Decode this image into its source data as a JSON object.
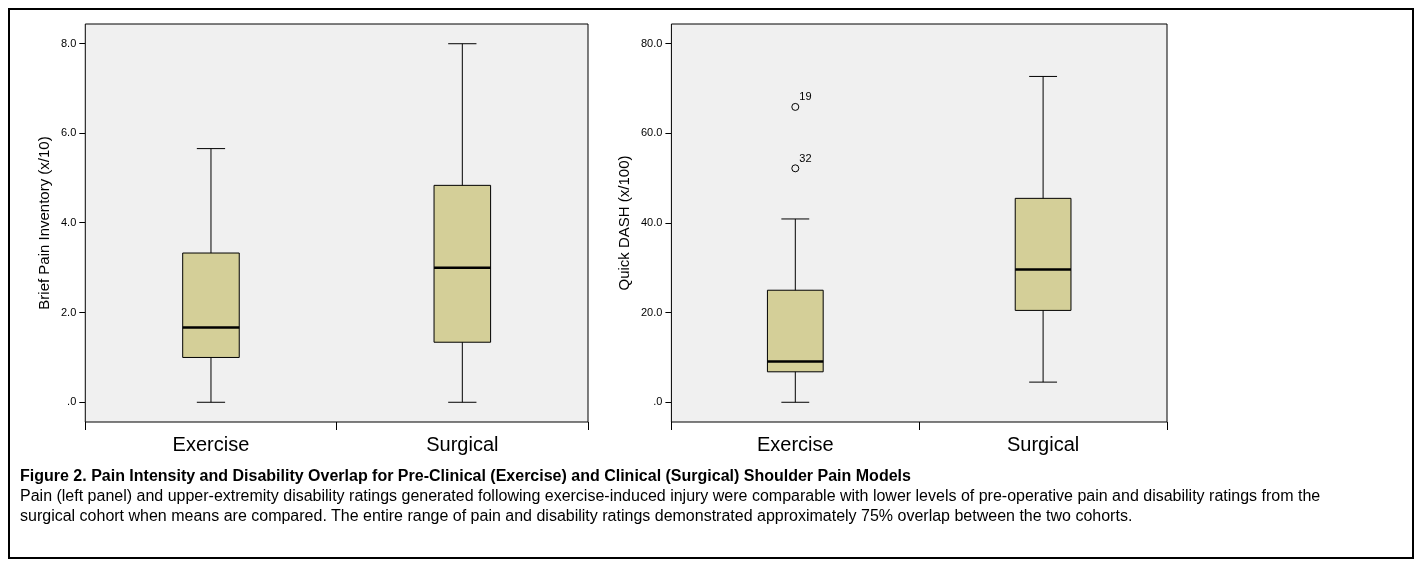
{
  "chart_data": [
    {
      "type": "box",
      "title": "Figure 2. Pain Intensity and Disability Overlap for Pre-Clinical (Exercise) and Clinical (Surgical) Shoulder Pain Models",
      "subtitle": "Pain (left panel) and upper-extremity disability ratings generated following exercise-induced injury were comparable with lower levels of pre-operative pain and disability ratings from the surgical cohort when means are compared.  The entire range of pain and disability ratings demonstrated approximately 75% overlap between the two cohorts.",
      "categories": [
        "Exercise",
        "Surgical"
      ],
      "ylabel": "Brief Pain Inventory (x/10)",
      "ylim": [
        -0.44,
        8.44
      ],
      "yticks": [
        {
          "value": 0,
          "label": ".0"
        },
        {
          "value": 2,
          "label": "2.0"
        },
        {
          "value": 4,
          "label": "4.0"
        },
        {
          "value": 6,
          "label": "6.0"
        },
        {
          "value": 8,
          "label": "8.0"
        }
      ],
      "series": [
        {
          "color": "#d4cf98",
          "boxes": [
            {
              "low": 0,
              "q1": 1.0,
              "median": 1.67,
              "q3": 3.33,
              "high": 5.66
            },
            {
              "low": 0,
              "q1": 1.34,
              "median": 3.0,
              "q3": 4.84,
              "high": 8.0
            }
          ]
        }
      ]
    },
    {
      "type": "box",
      "categories": [
        "Exercise",
        "Surgical"
      ],
      "ylabel": "Quick DASH (x/100)",
      "ylim": [
        -4.4,
        84.4
      ],
      "yticks": [
        {
          "value": 0,
          "label": ".0"
        },
        {
          "value": 20,
          "label": "20.0"
        },
        {
          "value": 40,
          "label": "40.0"
        },
        {
          "value": 60,
          "label": "60.0"
        },
        {
          "value": 80,
          "label": "80.0"
        }
      ],
      "series": [
        {
          "color": "#d4cf98",
          "boxes": [
            {
              "low": 0,
              "q1": 6.8,
              "median": 9.1,
              "q3": 25.0,
              "high": 40.9,
              "outliers": [
                65.9,
                52.2
              ]
            },
            {
              "low": 4.5,
              "q1": 20.5,
              "median": 29.6,
              "q3": 45.5,
              "high": 72.7
            }
          ]
        }
      ],
      "annotations": [
        "19",
        "32"
      ]
    }
  ]
}
